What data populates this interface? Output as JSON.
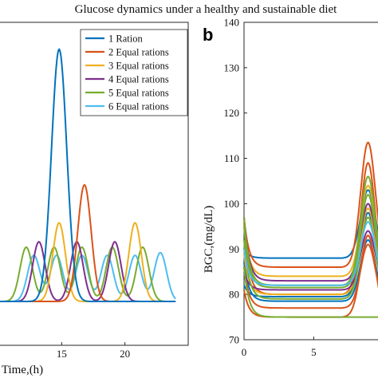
{
  "figure": {
    "title": "Glucose dynamics under a healthy and sustainable diet",
    "panel_b_letter": "b"
  },
  "colors": {
    "series": [
      "#0072BD",
      "#D95319",
      "#EDB120",
      "#7E2F8E",
      "#77AC30",
      "#4DBEEE"
    ]
  },
  "chart_data": [
    {
      "type": "line",
      "panel": "a (partial)",
      "xlabel": "Time,(h)",
      "x_ticks": [
        15,
        20
      ],
      "xlim": [
        10,
        25
      ],
      "ylim": [
        0,
        1
      ],
      "legend": {
        "placement": "top-right"
      },
      "series": [
        {
          "name": "1 Ration",
          "peaks": [
            {
              "x": 14.8,
              "y": 0.93
            }
          ]
        },
        {
          "name": "2 Equal rations",
          "peaks": [
            {
              "x": 16.8,
              "y": 0.43
            }
          ]
        },
        {
          "name": "3 Equal rations",
          "peaks": [
            {
              "x": 14.8,
              "y": 0.29
            },
            {
              "x": 20.8,
              "y": 0.29
            }
          ]
        },
        {
          "name": "4 Equal rations",
          "peaks": [
            {
              "x": 13.2,
              "y": 0.22
            },
            {
              "x": 16.2,
              "y": 0.22
            },
            {
              "x": 19.2,
              "y": 0.22
            }
          ]
        },
        {
          "name": "5 Equal rations",
          "peaks": [
            {
              "x": 12.2,
              "y": 0.2
            },
            {
              "x": 14.4,
              "y": 0.2
            },
            {
              "x": 16.6,
              "y": 0.2
            },
            {
              "x": 19.0,
              "y": 0.2
            },
            {
              "x": 21.4,
              "y": 0.2
            }
          ]
        },
        {
          "name": "6 Equal rations",
          "peaks": [
            {
              "x": 12.8,
              "y": 0.17
            },
            {
              "x": 14.6,
              "y": 0.17
            },
            {
              "x": 16.6,
              "y": 0.17
            },
            {
              "x": 18.6,
              "y": 0.17
            },
            {
              "x": 20.8,
              "y": 0.17
            },
            {
              "x": 22.8,
              "y": 0.18
            }
          ]
        }
      ]
    },
    {
      "type": "line",
      "panel": "b",
      "ylabel": "BGC,(mg/dL)",
      "x_ticks": [
        0,
        5
      ],
      "y_ticks": [
        70,
        80,
        90,
        100,
        110,
        120,
        130,
        140
      ],
      "xlim": [
        0,
        10.3
      ],
      "ylim": [
        70,
        140
      ],
      "rise_start_x": 7.0,
      "peak_x": 8.9,
      "lines": [
        {
          "color_index": 0,
          "start": 87.0,
          "baseline": 78.5,
          "peak": 92.0
        },
        {
          "color_index": 0,
          "start": 82.0,
          "baseline": 79.5,
          "peak": 98.0
        },
        {
          "color_index": 0,
          "start": 90.0,
          "baseline": 88.0,
          "peak": 103.0
        },
        {
          "color_index": 1,
          "start": 97.0,
          "baseline": 86.0,
          "peak": 113.5
        },
        {
          "color_index": 1,
          "start": 96.0,
          "baseline": 80.0,
          "peak": 109.0
        },
        {
          "color_index": 1,
          "start": 86.0,
          "baseline": 77.0,
          "peak": 91.0
        },
        {
          "color_index": 1,
          "start": 81.0,
          "baseline": 75.0,
          "peak": 93.0
        },
        {
          "color_index": 2,
          "start": 96.0,
          "baseline": 84.0,
          "peak": 104.0
        },
        {
          "color_index": 2,
          "start": 89.0,
          "baseline": 80.0,
          "peak": 99.0
        },
        {
          "color_index": 3,
          "start": 97.0,
          "baseline": 83.0,
          "peak": 100.0
        },
        {
          "color_index": 3,
          "start": 85.0,
          "baseline": 81.0,
          "peak": 94.0
        },
        {
          "color_index": 4,
          "start": 97.0,
          "baseline": 82.0,
          "peak": 106.0
        },
        {
          "color_index": 4,
          "start": 95.0,
          "baseline": 81.5,
          "peak": 102.0
        },
        {
          "color_index": 4,
          "start": 92.0,
          "baseline": 79.0,
          "peak": 97.0
        },
        {
          "color_index": 4,
          "start": 86.0,
          "baseline": 75.0,
          "peak": 75.0
        },
        {
          "color_index": 5,
          "start": 90.0,
          "baseline": 82.0,
          "peak": 96.0
        }
      ]
    }
  ]
}
